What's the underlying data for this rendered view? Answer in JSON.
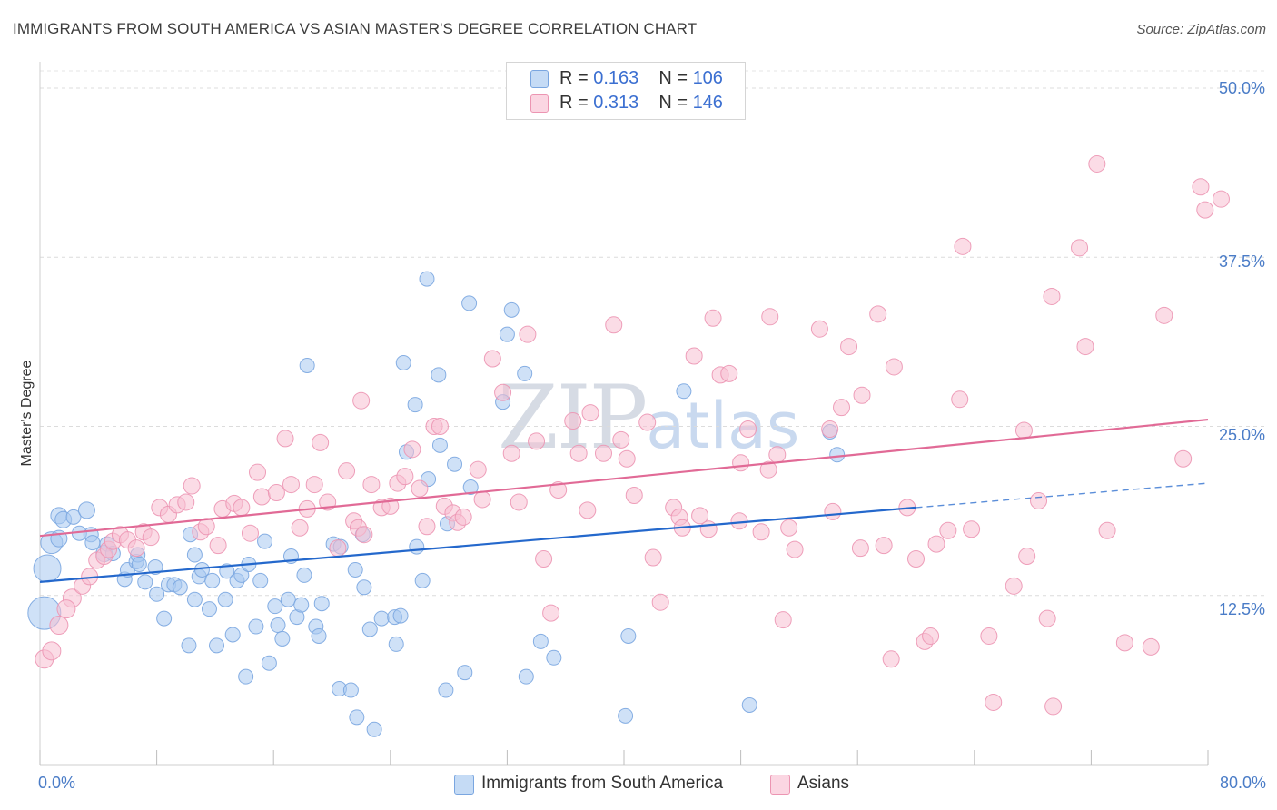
{
  "title": "IMMIGRANTS FROM SOUTH AMERICA VS ASIAN MASTER'S DEGREE CORRELATION CHART",
  "source": "Source: ZipAtlas.com",
  "watermark": {
    "zip": "ZIP",
    "atlas": "atlas"
  },
  "legend": {
    "rows": [
      {
        "r_label": "R = ",
        "r_value": "0.163",
        "n_label": "N = ",
        "n_value": "106",
        "color": "#a8c8f0",
        "border": "#7aa6e0"
      },
      {
        "r_label": "R = ",
        "r_value": "0.313",
        "n_label": "N = ",
        "n_value": "146",
        "color": "#f8c0d2",
        "border": "#ec95b2"
      }
    ]
  },
  "bottom_legend": [
    {
      "label": "Immigrants from South America",
      "color": "#c5dbf5",
      "border": "#7aa6e0"
    },
    {
      "label": "Asians",
      "color": "#fbd6e2",
      "border": "#ec95b2"
    }
  ],
  "chart_data": {
    "type": "scatter",
    "title": "IMMIGRANTS FROM SOUTH AMERICA VS ASIAN MASTER'S DEGREE CORRELATION CHART",
    "xlabel": "",
    "ylabel": "Master's Degree",
    "xlim": [
      0,
      80
    ],
    "ylim": [
      0,
      50
    ],
    "x_tick_labels": [
      "0.0%",
      "80.0%"
    ],
    "y_ticks": [
      12.5,
      25.0,
      37.5,
      50.0
    ],
    "y_tick_labels": [
      "12.5%",
      "25.0%",
      "37.5%",
      "50.0%"
    ],
    "grid": true,
    "series": [
      {
        "name": "Immigrants from South America",
        "color": "#7aa6e0",
        "fill": "#a8c8f0",
        "line_color": "#2468cc",
        "trend": {
          "x0": 0,
          "y0": 13.5,
          "x1": 60,
          "y1": 19.0,
          "dash_x1": 80,
          "dash_y1": 20.8
        },
        "points": [
          [
            0.3,
            11.2,
            18
          ],
          [
            0.5,
            14.5,
            15
          ],
          [
            0.8,
            16.4,
            12
          ],
          [
            1.3,
            16.7,
            9
          ],
          [
            1.3,
            18.4,
            9
          ],
          [
            1.6,
            18.1,
            9
          ],
          [
            2.3,
            18.3,
            8
          ],
          [
            3.2,
            18.8,
            9
          ],
          [
            2.7,
            17.1,
            8
          ],
          [
            3.5,
            17.0,
            8
          ],
          [
            3.6,
            16.4,
            8
          ],
          [
            4.4,
            15.6,
            9
          ],
          [
            4.6,
            16.3,
            8
          ],
          [
            5.0,
            15.6,
            8
          ],
          [
            5.8,
            13.7,
            8
          ],
          [
            6.0,
            14.4,
            8
          ],
          [
            6.6,
            15.0,
            8
          ],
          [
            6.7,
            15.5,
            8
          ],
          [
            6.8,
            14.8,
            8
          ],
          [
            7.2,
            13.5,
            8
          ],
          [
            7.9,
            14.6,
            8
          ],
          [
            8.0,
            12.6,
            8
          ],
          [
            8.5,
            10.8,
            8
          ],
          [
            8.8,
            13.3,
            8
          ],
          [
            9.2,
            13.3,
            8
          ],
          [
            9.6,
            13.1,
            8
          ],
          [
            10.2,
            8.8,
            8
          ],
          [
            10.3,
            17.0,
            8
          ],
          [
            10.6,
            15.5,
            8
          ],
          [
            10.6,
            12.2,
            8
          ],
          [
            10.9,
            13.9,
            8
          ],
          [
            11.1,
            14.4,
            8
          ],
          [
            11.6,
            11.5,
            8
          ],
          [
            11.8,
            13.6,
            8
          ],
          [
            12.1,
            8.8,
            8
          ],
          [
            12.7,
            12.2,
            8
          ],
          [
            12.8,
            14.3,
            8
          ],
          [
            13.2,
            9.6,
            8
          ],
          [
            13.5,
            13.6,
            8
          ],
          [
            13.8,
            14.0,
            8
          ],
          [
            14.1,
            6.5,
            8
          ],
          [
            14.3,
            14.8,
            8
          ],
          [
            14.8,
            10.2,
            8
          ],
          [
            15.1,
            13.6,
            8
          ],
          [
            15.4,
            16.5,
            8
          ],
          [
            15.7,
            7.5,
            8
          ],
          [
            16.1,
            11.7,
            8
          ],
          [
            16.3,
            10.3,
            8
          ],
          [
            16.6,
            9.3,
            8
          ],
          [
            17.0,
            12.2,
            8
          ],
          [
            17.2,
            15.4,
            8
          ],
          [
            17.6,
            10.9,
            8
          ],
          [
            17.9,
            11.8,
            8
          ],
          [
            18.1,
            14.0,
            8
          ],
          [
            18.3,
            29.5,
            8
          ],
          [
            18.9,
            10.2,
            8
          ],
          [
            19.1,
            9.5,
            8
          ],
          [
            19.3,
            11.9,
            8
          ],
          [
            20.1,
            16.3,
            8
          ],
          [
            20.5,
            5.6,
            8
          ],
          [
            20.6,
            16.1,
            8
          ],
          [
            21.3,
            5.5,
            8
          ],
          [
            21.6,
            14.4,
            8
          ],
          [
            21.7,
            3.5,
            8
          ],
          [
            22.1,
            17.0,
            8
          ],
          [
            22.2,
            13.1,
            8
          ],
          [
            22.6,
            10.0,
            8
          ],
          [
            22.9,
            2.6,
            8
          ],
          [
            23.4,
            10.8,
            8
          ],
          [
            24.3,
            10.9,
            8
          ],
          [
            24.4,
            8.9,
            8
          ],
          [
            24.7,
            11.0,
            8
          ],
          [
            24.9,
            29.7,
            8
          ],
          [
            25.1,
            23.1,
            8
          ],
          [
            25.7,
            26.6,
            8
          ],
          [
            25.8,
            16.1,
            8
          ],
          [
            26.2,
            13.6,
            8
          ],
          [
            26.5,
            35.9,
            8
          ],
          [
            26.6,
            21.1,
            8
          ],
          [
            27.4,
            23.6,
            8
          ],
          [
            27.3,
            28.8,
            8
          ],
          [
            27.8,
            5.5,
            8
          ],
          [
            27.9,
            17.8,
            8
          ],
          [
            28.4,
            22.2,
            8
          ],
          [
            29.1,
            6.8,
            8
          ],
          [
            29.4,
            34.1,
            8
          ],
          [
            29.5,
            20.5,
            8
          ],
          [
            31.7,
            26.8,
            8
          ],
          [
            32.0,
            31.8,
            8
          ],
          [
            32.3,
            33.6,
            8
          ],
          [
            33.3,
            6.5,
            8
          ],
          [
            33.2,
            28.9,
            8
          ],
          [
            34.3,
            9.1,
            8
          ],
          [
            35.2,
            7.9,
            8
          ],
          [
            40.1,
            3.6,
            8
          ],
          [
            40.3,
            9.5,
            8
          ],
          [
            44.1,
            27.6,
            8
          ],
          [
            48.6,
            4.4,
            8
          ],
          [
            54.1,
            24.6,
            8
          ],
          [
            54.6,
            22.9,
            8
          ]
        ]
      },
      {
        "name": "Asians",
        "color": "#ec95b2",
        "fill": "#f8c0d2",
        "line_color": "#e16a96",
        "trend": {
          "x0": 0,
          "y0": 16.9,
          "x1": 80,
          "y1": 25.5
        },
        "points": [
          [
            0.3,
            7.8,
            10
          ],
          [
            0.8,
            8.4,
            10
          ],
          [
            1.3,
            10.3,
            10
          ],
          [
            2.2,
            12.3,
            10
          ],
          [
            1.8,
            11.5,
            10
          ],
          [
            2.9,
            13.2,
            9
          ],
          [
            3.4,
            13.9,
            9
          ],
          [
            3.9,
            15.1,
            9
          ],
          [
            4.4,
            15.4,
            9
          ],
          [
            4.7,
            15.9,
            9
          ],
          [
            5.0,
            16.5,
            9
          ],
          [
            5.5,
            17.0,
            9
          ],
          [
            6.0,
            16.6,
            9
          ],
          [
            6.6,
            16.0,
            9
          ],
          [
            7.1,
            17.2,
            9
          ],
          [
            7.6,
            16.8,
            9
          ],
          [
            8.2,
            19.0,
            9
          ],
          [
            8.8,
            18.5,
            9
          ],
          [
            9.4,
            19.2,
            9
          ],
          [
            10.0,
            19.4,
            9
          ],
          [
            10.4,
            20.6,
            9
          ],
          [
            11.0,
            17.2,
            9
          ],
          [
            11.4,
            17.6,
            9
          ],
          [
            12.2,
            16.2,
            9
          ],
          [
            12.5,
            18.9,
            9
          ],
          [
            13.3,
            19.3,
            9
          ],
          [
            13.8,
            19.0,
            9
          ],
          [
            14.4,
            17.1,
            9
          ],
          [
            14.9,
            21.6,
            9
          ],
          [
            15.2,
            19.8,
            9
          ],
          [
            16.2,
            20.1,
            9
          ],
          [
            16.8,
            24.1,
            9
          ],
          [
            17.2,
            20.7,
            9
          ],
          [
            17.8,
            17.5,
            9
          ],
          [
            18.3,
            18.9,
            9
          ],
          [
            18.8,
            20.7,
            9
          ],
          [
            19.2,
            23.8,
            9
          ],
          [
            19.7,
            19.4,
            9
          ],
          [
            20.4,
            16.0,
            9
          ],
          [
            21.0,
            21.7,
            9
          ],
          [
            21.5,
            18.0,
            9
          ],
          [
            21.8,
            17.5,
            9
          ],
          [
            22.2,
            17.0,
            9
          ],
          [
            22.0,
            26.9,
            9
          ],
          [
            22.7,
            20.7,
            9
          ],
          [
            23.4,
            19.0,
            9
          ],
          [
            24.0,
            19.1,
            9
          ],
          [
            24.5,
            20.8,
            9
          ],
          [
            25.0,
            21.3,
            9
          ],
          [
            25.5,
            23.3,
            9
          ],
          [
            26.0,
            20.4,
            9
          ],
          [
            26.5,
            17.6,
            9
          ],
          [
            27.0,
            25.0,
            9
          ],
          [
            27.4,
            25.0,
            9
          ],
          [
            27.7,
            19.1,
            9
          ],
          [
            28.3,
            18.6,
            9
          ],
          [
            28.6,
            17.9,
            9
          ],
          [
            29.0,
            18.3,
            9
          ],
          [
            30.0,
            21.8,
            9
          ],
          [
            30.3,
            19.6,
            9
          ],
          [
            31.0,
            30.0,
            9
          ],
          [
            31.7,
            27.5,
            9
          ],
          [
            32.3,
            23.0,
            9
          ],
          [
            32.8,
            19.4,
            9
          ],
          [
            33.4,
            31.8,
            9
          ],
          [
            34.0,
            23.9,
            9
          ],
          [
            34.5,
            15.2,
            9
          ],
          [
            35.0,
            11.2,
            9
          ],
          [
            35.5,
            20.3,
            9
          ],
          [
            36.5,
            25.4,
            9
          ],
          [
            36.9,
            23.0,
            9
          ],
          [
            37.5,
            18.8,
            9
          ],
          [
            37.7,
            26.0,
            9
          ],
          [
            38.6,
            23.0,
            9
          ],
          [
            39.3,
            32.5,
            9
          ],
          [
            39.8,
            24.0,
            9
          ],
          [
            40.2,
            22.6,
            9
          ],
          [
            40.7,
            19.9,
            9
          ],
          [
            41.6,
            25.3,
            9
          ],
          [
            42.0,
            15.3,
            9
          ],
          [
            42.5,
            12.0,
            9
          ],
          [
            43.4,
            19.0,
            9
          ],
          [
            43.8,
            18.3,
            9
          ],
          [
            44.0,
            17.5,
            9
          ],
          [
            44.8,
            30.2,
            9
          ],
          [
            45.2,
            18.4,
            9
          ],
          [
            45.8,
            17.4,
            9
          ],
          [
            46.1,
            33.0,
            9
          ],
          [
            46.6,
            28.8,
            9
          ],
          [
            47.2,
            28.9,
            9
          ],
          [
            47.9,
            18.0,
            9
          ],
          [
            48.0,
            22.3,
            9
          ],
          [
            48.5,
            24.8,
            9
          ],
          [
            49.4,
            17.2,
            9
          ],
          [
            49.9,
            21.8,
            9
          ],
          [
            50.0,
            33.1,
            9
          ],
          [
            50.5,
            22.9,
            9
          ],
          [
            50.9,
            10.7,
            9
          ],
          [
            51.3,
            17.5,
            9
          ],
          [
            51.7,
            15.9,
            9
          ],
          [
            53.4,
            32.2,
            9
          ],
          [
            54.1,
            24.8,
            9
          ],
          [
            54.3,
            18.7,
            9
          ],
          [
            54.9,
            26.4,
            9
          ],
          [
            55.4,
            30.9,
            9
          ],
          [
            56.2,
            16.0,
            9
          ],
          [
            56.3,
            27.3,
            9
          ],
          [
            57.4,
            33.3,
            9
          ],
          [
            57.8,
            16.2,
            9
          ],
          [
            58.3,
            7.8,
            9
          ],
          [
            58.5,
            29.4,
            9
          ],
          [
            59.4,
            19.0,
            9
          ],
          [
            60.0,
            15.2,
            9
          ],
          [
            60.6,
            9.1,
            9
          ],
          [
            61.0,
            9.5,
            9
          ],
          [
            61.4,
            16.3,
            9
          ],
          [
            62.2,
            17.3,
            9
          ],
          [
            63.0,
            27.0,
            9
          ],
          [
            63.2,
            38.3,
            9
          ],
          [
            63.8,
            17.4,
            9
          ],
          [
            65.0,
            9.5,
            9
          ],
          [
            65.3,
            4.6,
            9
          ],
          [
            66.7,
            13.2,
            9
          ],
          [
            67.4,
            24.7,
            9
          ],
          [
            67.6,
            15.4,
            9
          ],
          [
            68.4,
            19.5,
            9
          ],
          [
            69.0,
            10.8,
            9
          ],
          [
            69.3,
            34.6,
            9
          ],
          [
            69.4,
            4.3,
            9
          ],
          [
            71.6,
            30.9,
            9
          ],
          [
            71.2,
            38.2,
            9
          ],
          [
            72.4,
            44.4,
            9
          ],
          [
            73.1,
            17.3,
            9
          ],
          [
            74.3,
            9.0,
            9
          ],
          [
            76.1,
            8.7,
            9
          ],
          [
            77.0,
            33.2,
            9
          ],
          [
            78.3,
            22.6,
            9
          ],
          [
            79.5,
            42.7,
            9
          ],
          [
            79.8,
            41.0,
            9
          ],
          [
            80.9,
            41.8,
            9
          ]
        ]
      }
    ]
  }
}
